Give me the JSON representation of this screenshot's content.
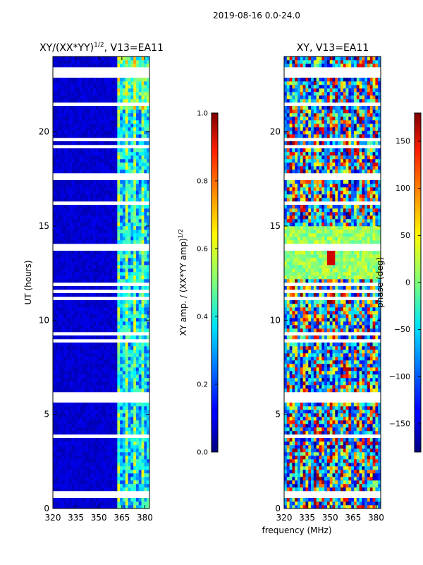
{
  "figure": {
    "suptitle": "2019-08-16 0.0-24.0",
    "xlabel": "frequency (MHz)"
  },
  "chart_data": [
    {
      "type": "heatmap",
      "title_main": "XY/(XX*YY)",
      "title_exp": "1/2",
      "title_suffix": ", V13=EA11",
      "xlabel": "",
      "ylabel": "UT (hours)",
      "xlim": [
        320,
        383
      ],
      "ylim": [
        0,
        24
      ],
      "xticks": [
        320,
        335,
        350,
        365,
        380
      ],
      "yticks": [
        0,
        5,
        10,
        15,
        20
      ],
      "colormap": "jet",
      "colorbar": {
        "label_main": "XY amp. / (XX*YY amp)",
        "label_exp": "1/2",
        "range": [
          0.0,
          1.0
        ],
        "ticks": [
          0.0,
          0.2,
          0.4,
          0.6,
          0.8,
          1.0
        ],
        "tick_labels": [
          "0.0",
          "0.2",
          "0.4",
          "0.6",
          "0.8",
          "1.0"
        ]
      }
    },
    {
      "type": "heatmap",
      "title": "XY, V13=EA11",
      "xlabel": "frequency (MHz)",
      "ylabel": "",
      "xlim": [
        320,
        383
      ],
      "ylim": [
        0,
        24
      ],
      "xticks": [
        320,
        335,
        350,
        365,
        380
      ],
      "yticks": [
        0,
        5,
        10,
        15,
        20
      ],
      "colormap": "jet",
      "colorbar": {
        "label": "phase (deg)",
        "range": [
          -180,
          180
        ],
        "ticks": [
          -150,
          -100,
          -50,
          0,
          50,
          100,
          150
        ],
        "tick_labels": [
          "−150",
          "−100",
          "−50",
          "0",
          "50",
          "100",
          "150"
        ]
      }
    }
  ]
}
